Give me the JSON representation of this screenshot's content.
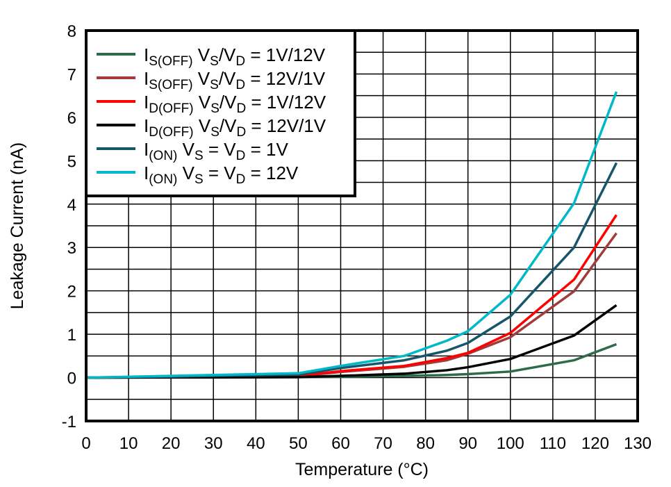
{
  "chart_data": {
    "type": "line",
    "title": "",
    "xlabel": "Temperature (°C)",
    "ylabel": "Leakage Current (nA)",
    "xlim": [
      0,
      130
    ],
    "ylim": [
      -1,
      8
    ],
    "xticks": [
      0,
      10,
      20,
      30,
      40,
      50,
      60,
      70,
      80,
      90,
      100,
      110,
      120,
      130
    ],
    "yticks": [
      -1,
      0,
      1,
      2,
      3,
      4,
      5,
      6,
      7,
      8
    ],
    "grid": true,
    "legend_placement": "top-left",
    "x": [
      0,
      25,
      50,
      60,
      75,
      85,
      90,
      100,
      115,
      125
    ],
    "series": [
      {
        "name_parts": [
          [
            "I",
            ""
          ],
          [
            "S(OFF)",
            "sub"
          ],
          [
            " V",
            ""
          ],
          [
            "S",
            "sub"
          ],
          [
            "/V",
            ""
          ],
          [
            "D",
            "sub"
          ],
          [
            " = 1V/12V",
            ""
          ]
        ],
        "color": "#2e6b4a",
        "values": [
          0,
          0.005,
          0.01,
          0.02,
          0.04,
          0.06,
          0.08,
          0.14,
          0.4,
          0.77
        ]
      },
      {
        "name_parts": [
          [
            "I",
            ""
          ],
          [
            "S(OFF)",
            "sub"
          ],
          [
            " V",
            ""
          ],
          [
            "S",
            "sub"
          ],
          [
            "/V",
            ""
          ],
          [
            "D",
            "sub"
          ],
          [
            " = 12V/1V",
            ""
          ]
        ],
        "color": "#a03c3c",
        "values": [
          0,
          0.01,
          0.03,
          0.13,
          0.25,
          0.4,
          0.55,
          0.93,
          1.99,
          3.33
        ]
      },
      {
        "name_parts": [
          [
            "I",
            ""
          ],
          [
            "D(OFF)",
            "sub"
          ],
          [
            " V",
            ""
          ],
          [
            "S",
            "sub"
          ],
          [
            "/V",
            ""
          ],
          [
            "D",
            "sub"
          ],
          [
            " = 1V/12V",
            ""
          ]
        ],
        "color": "#ff0000",
        "values": [
          0,
          0.01,
          0.04,
          0.15,
          0.27,
          0.45,
          0.57,
          1.03,
          2.26,
          3.75
        ]
      },
      {
        "name_parts": [
          [
            "I",
            ""
          ],
          [
            "D(OFF)",
            "sub"
          ],
          [
            " V",
            ""
          ],
          [
            "S",
            "sub"
          ],
          [
            "/V",
            ""
          ],
          [
            "D",
            "sub"
          ],
          [
            " = 12V/1V",
            ""
          ]
        ],
        "color": "#000000",
        "values": [
          0,
          0.005,
          0.01,
          0.04,
          0.09,
          0.17,
          0.24,
          0.43,
          0.97,
          1.67
        ]
      },
      {
        "name_parts": [
          [
            "I",
            ""
          ],
          [
            "(ON)",
            "sub"
          ],
          [
            " V",
            ""
          ],
          [
            "S",
            "sub"
          ],
          [
            " = V",
            ""
          ],
          [
            "D",
            "sub"
          ],
          [
            " = 1V",
            ""
          ]
        ],
        "color": "#15566a",
        "values": [
          0,
          0.03,
          0.07,
          0.22,
          0.4,
          0.62,
          0.8,
          1.41,
          3.0,
          4.95
        ]
      },
      {
        "name_parts": [
          [
            "I",
            ""
          ],
          [
            "(ON)",
            "sub"
          ],
          [
            " V",
            ""
          ],
          [
            "S",
            "sub"
          ],
          [
            " = V",
            ""
          ],
          [
            "D",
            "sub"
          ],
          [
            " = 12V",
            ""
          ]
        ],
        "color": "#00b8c8",
        "values": [
          0,
          0.05,
          0.1,
          0.27,
          0.5,
          0.85,
          1.07,
          1.91,
          4.02,
          6.59
        ]
      }
    ]
  }
}
